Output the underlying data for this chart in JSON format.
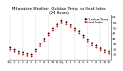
{
  "title": "Milwaukee Weather  Outdoor Temp  vs Heat Index\n(24 Hours)",
  "title_fontsize": 3.8,
  "background_color": "#ffffff",
  "outdoor_temp": [
    32,
    30,
    28,
    27,
    26,
    25,
    30,
    35,
    40,
    45,
    50,
    54,
    57,
    56,
    53,
    50,
    47,
    43,
    39,
    36,
    34,
    31,
    29,
    28
  ],
  "heat_index": [
    30,
    28,
    26,
    25,
    24,
    23,
    28,
    33,
    38,
    43,
    48,
    52,
    55,
    54,
    51,
    48,
    45,
    41,
    37,
    34,
    32,
    29,
    27,
    26
  ],
  "time_labels": [
    "12a",
    "1",
    "2",
    "3",
    "4",
    "5",
    "6",
    "7",
    "8",
    "9",
    "10",
    "11",
    "12p",
    "1",
    "2",
    "3",
    "4",
    "5",
    "6",
    "7",
    "8",
    "9",
    "10",
    "11"
  ],
  "outdoor_color": "#000000",
  "heat_index_color": "#ff0000",
  "grid_color": "#888888",
  "ylim": [
    20,
    62
  ],
  "ytick_right_labels": [
    "60",
    "55",
    "50",
    "45",
    "40",
    "35",
    "30",
    "25"
  ],
  "yticks": [
    60,
    55,
    50,
    45,
    40,
    35,
    30,
    25
  ],
  "ylabel_fontsize": 3.2,
  "xlabel_fontsize": 2.8,
  "marker_size": 1.5,
  "legend_outdoor": "Outdoor Temp",
  "legend_heat": "Heat Index",
  "legend_fontsize": 3.0,
  "grid_positions": [
    0,
    3,
    6,
    9,
    12,
    15,
    18,
    21,
    23
  ]
}
